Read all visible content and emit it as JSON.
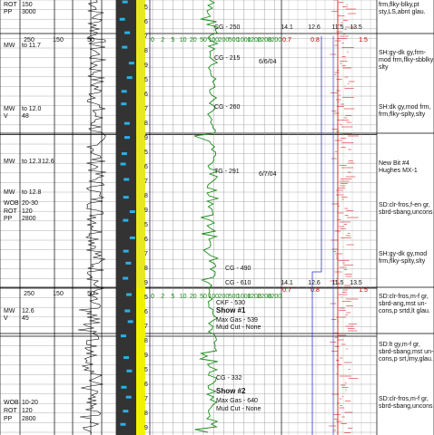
{
  "params": [
    [
      "ROT",
      "150"
    ],
    [
      "PP",
      "3000"
    ],
    [
      "MW",
      "to 11.7"
    ],
    [
      "MW",
      "to 12.0"
    ],
    [
      "V",
      "48"
    ],
    [
      "MW",
      "to 12.3",
      "12.6"
    ],
    [
      "MW",
      "to 12.8"
    ],
    [
      "WOB",
      "20-30"
    ],
    [
      "ROT",
      "120"
    ],
    [
      "PP",
      "2800"
    ],
    [
      "MW",
      "12.6"
    ],
    [
      "V",
      "45"
    ],
    [
      "WOB",
      "10-20"
    ],
    [
      "ROT",
      "120"
    ],
    [
      "PP",
      "2800"
    ]
  ],
  "rop_scale": [
    [
      "250",
      "150",
      "50"
    ],
    [
      "250",
      "150",
      "50"
    ]
  ],
  "gas_scale": [
    "0",
    "2",
    "5",
    "10",
    "20",
    "50",
    "100",
    "200",
    "500",
    "1000",
    "1200",
    "2200",
    "3200"
  ],
  "gas_notes": [
    "CG - 250",
    "CG - 215",
    "6/6/04",
    "CG - 260",
    "TG - 291",
    "6/7/04",
    "CG - 490",
    "CG - 610",
    "CKF - 530",
    "Show #1",
    "Max Gas - 539",
    "Mud Cut - None",
    "CG - 332",
    "Show #2",
    "Max Gas - 640",
    "Mud Cut - None"
  ],
  "chrom_scale": [
    [
      "14.1",
      "12.6",
      "11.5",
      "13.5"
    ],
    [
      "0.7",
      "0.8",
      "1.5"
    ],
    [
      "14.1",
      "12.6",
      "11.5",
      "13.5"
    ],
    [
      "0.7",
      "0.8",
      "1.5"
    ]
  ],
  "depth_marks": [
    "5",
    "6",
    "7",
    "8",
    "9",
    "5",
    "6",
    "7",
    "8",
    "9",
    "5",
    "6",
    "7",
    "8",
    "9",
    "5",
    "6",
    "7",
    "8",
    "9",
    "5",
    "6",
    "7",
    "8",
    "9",
    "5",
    "6",
    "7",
    "8",
    "9"
  ],
  "descriptions": [
    [
      "frm,flky-blky,pt",
      "sty,LS,abnt glau."
    ],
    [
      "SH:gy-dk gy,frm-",
      "mod frm,flky-sbblky,",
      "slty"
    ],
    [
      "SH:dk gy,mod frm,",
      "frm,flky-splty,slty"
    ],
    [
      "New Bit #4",
      "Hughes MX-1"
    ],
    [
      "SD:clr-fros,f-en gr,",
      "sbrd-sbang,uncons"
    ],
    [
      "SH:gy-dk gy,mod",
      "frm,flky-splty,slty"
    ],
    [
      "SD:clr-fros,m-f gr,",
      "sbrd-ang,mst un-",
      "cons,p srtd,lt glau."
    ],
    [
      "SD:lt gy,m-f gr,",
      "sbrd-sbang,mst un-",
      "cons,p srt,lmy,glau."
    ],
    [
      "SD:clr-fros,m-f gr,",
      "sbrd-sbang,uncons"
    ]
  ]
}
